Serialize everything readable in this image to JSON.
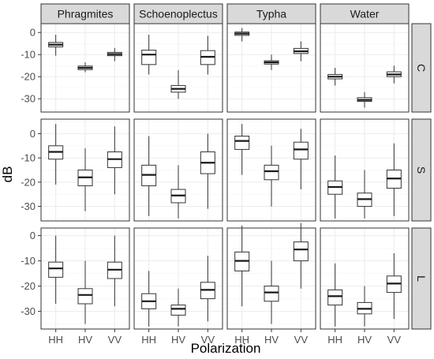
{
  "chart_data": {
    "type": "boxplot",
    "xlabel": "Polarization",
    "ylabel": "dB",
    "categories": [
      "HH",
      "HV",
      "VV"
    ],
    "columns": [
      "Phragmites",
      "Schoenoplectus",
      "Typha",
      "Water"
    ],
    "rows": [
      "C",
      "S",
      "L"
    ],
    "grid": true,
    "rows_y": {
      "C": {
        "ylim": [
          -36,
          4
        ],
        "ticks": [
          0,
          -10,
          -20,
          -30
        ],
        "tick_labels": [
          "0",
          "-10",
          "-20",
          "-30"
        ]
      },
      "S": {
        "ylim": [
          -36,
          6
        ],
        "ticks": [
          0,
          -10,
          -20,
          -30
        ],
        "tick_labels": [
          "0",
          "-10",
          "-20",
          "-30"
        ]
      },
      "L": {
        "ylim": [
          -37,
          3
        ],
        "ticks": [
          0,
          -10,
          -20,
          -30
        ],
        "tick_labels": [
          "0",
          "-10",
          "-20",
          "-30"
        ]
      }
    },
    "boxes": {
      "C": {
        "Phragmites": [
          [
            -10.5,
            -6.5,
            -5.5,
            -4.5,
            -1
          ],
          [
            -18,
            -16.8,
            -16,
            -15.2,
            -13.5
          ],
          [
            -13,
            -10.5,
            -9.8,
            -9,
            -7
          ]
        ],
        "Schoenoplectus": [
          [
            -19,
            -14.5,
            -10,
            -8,
            -1
          ],
          [
            -30,
            -27,
            -25.5,
            -24,
            -17
          ],
          [
            -19,
            -14.5,
            -11,
            -8.2,
            -1.5
          ]
        ],
        "Typha": [
          [
            -4,
            -1.3,
            -0.5,
            0.2,
            2
          ],
          [
            -17,
            -14.3,
            -13.5,
            -12.8,
            -10
          ],
          [
            -13,
            -9.5,
            -8.5,
            -7.2,
            -4
          ]
        ],
        "Water": [
          [
            -24,
            -21,
            -20,
            -19,
            -16
          ],
          [
            -34,
            -31.2,
            -30.5,
            -29.5,
            -27
          ],
          [
            -23,
            -20,
            -19,
            -17.8,
            -15
          ]
        ]
      },
      "S": {
        "Phragmites": [
          [
            -21,
            -10.5,
            -7.5,
            -5,
            4
          ],
          [
            -32,
            -21.5,
            -18,
            -15,
            -6
          ],
          [
            -25,
            -14,
            -10.5,
            -7.5,
            3
          ]
        ],
        "Schoenoplectus": [
          [
            -34,
            -21.5,
            -17,
            -13,
            -1
          ],
          [
            -35,
            -28.5,
            -25.5,
            -23,
            -13
          ],
          [
            -31,
            -16.5,
            -12,
            -7.5,
            0
          ]
        ],
        "Typha": [
          [
            -17,
            -6.5,
            -3,
            -1,
            4
          ],
          [
            -30,
            -19,
            -15.5,
            -13,
            -5
          ],
          [
            -23,
            -10.5,
            -6.5,
            -3.5,
            2
          ]
        ],
        "Water": [
          [
            -35,
            -25,
            -22,
            -19.5,
            -9
          ],
          [
            -35,
            -30,
            -27,
            -24.5,
            -15
          ],
          [
            -34,
            -22.5,
            -18.5,
            -15,
            -4
          ]
        ]
      },
      "L": {
        "Phragmites": [
          [
            -27,
            -16.5,
            -13,
            -10.5,
            0
          ],
          [
            -35,
            -27,
            -23.5,
            -21,
            -10
          ],
          [
            -28,
            -17,
            -13.5,
            -10.5,
            0
          ]
        ],
        "Schoenoplectus": [
          [
            -36,
            -29,
            -26,
            -23,
            -14
          ],
          [
            -36,
            -31.5,
            -29,
            -27.5,
            -21
          ],
          [
            -34,
            -25,
            -21.5,
            -18.5,
            -8
          ]
        ],
        "Typha": [
          [
            -28,
            -14,
            -10,
            -6.5,
            4
          ],
          [
            -35,
            -26,
            -22.5,
            -20,
            -10
          ],
          [
            -21,
            -10,
            -5.5,
            -2.5,
            5
          ]
        ],
        "Water": [
          [
            -36,
            -27.5,
            -24,
            -21.5,
            -11
          ],
          [
            -36,
            -31,
            -29,
            -26.5,
            -20
          ],
          [
            -33,
            -22.5,
            -19,
            -16,
            -7
          ]
        ]
      }
    }
  }
}
